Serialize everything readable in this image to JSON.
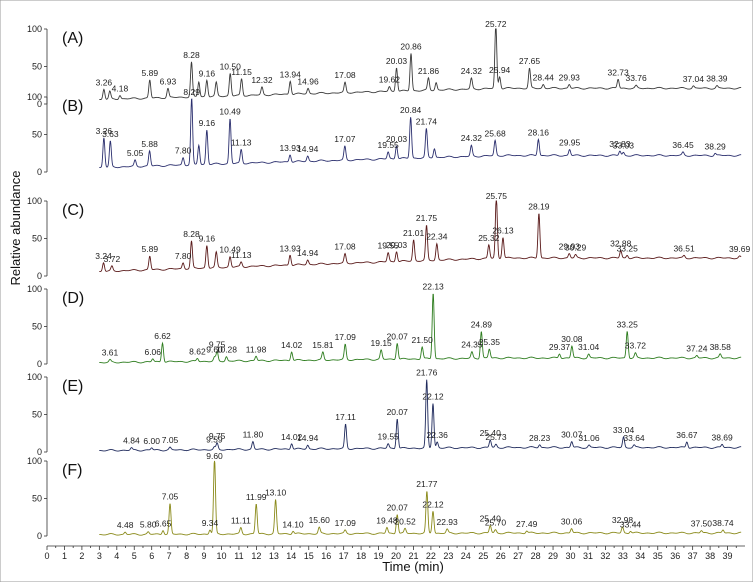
{
  "chart_data": {
    "type": "line",
    "xlabel": "Time (min)",
    "ylabel": "Relative abundance",
    "xlim": [
      0,
      40
    ],
    "x_ticks": [
      0,
      1,
      2,
      3,
      4,
      5,
      6,
      7,
      8,
      9,
      10,
      11,
      12,
      13,
      14,
      15,
      16,
      17,
      18,
      19,
      20,
      21,
      22,
      23,
      24,
      25,
      26,
      27,
      28,
      29,
      30,
      31,
      32,
      33,
      34,
      35,
      36,
      37,
      38,
      39
    ],
    "x_tick_labels": [
      "0",
      "1",
      "2",
      "3",
      "4",
      "5",
      "6",
      "7",
      "8",
      "9",
      "10",
      "11",
      "12",
      "13",
      "14",
      "15",
      "16",
      "17",
      "18",
      "19",
      "20",
      "21",
      "22",
      "23",
      "24",
      "25",
      "26",
      "27",
      "28",
      "29",
      "30",
      "31",
      "32",
      "33",
      "34",
      "35",
      "36",
      "37",
      "38",
      "39"
    ],
    "ylim": [
      0,
      100
    ],
    "y_ticks": [
      0,
      50,
      100
    ],
    "y_tick_labels": [
      "0",
      "50",
      "100"
    ],
    "panels": [
      {
        "label": "(A)",
        "color": "#3a3a3a",
        "baseline_start": 6,
        "baseline_end": 21,
        "peaks": [
          {
            "t": 3.26,
            "h": 14,
            "label": "3.26"
          },
          {
            "t": 3.6,
            "h": 10,
            "label": null
          },
          {
            "t": 4.18,
            "h": 5,
            "label": "4.18"
          },
          {
            "t": 5.89,
            "h": 24,
            "label": "5.89"
          },
          {
            "t": 6.93,
            "h": 12,
            "label": "6.93"
          },
          {
            "t": 8.28,
            "h": 46,
            "label": "8.28"
          },
          {
            "t": 8.7,
            "h": 20,
            "label": null
          },
          {
            "t": 9.16,
            "h": 22,
            "label": "9.16"
          },
          {
            "t": 9.7,
            "h": 18,
            "label": null
          },
          {
            "t": 10.5,
            "h": 30,
            "label": "10.50"
          },
          {
            "t": 11.15,
            "h": 22,
            "label": "11.15"
          },
          {
            "t": 12.32,
            "h": 10,
            "label": "12.32"
          },
          {
            "t": 13.94,
            "h": 18,
            "label": "13.94"
          },
          {
            "t": 14.96,
            "h": 7,
            "label": "14.96"
          },
          {
            "t": 17.08,
            "h": 13,
            "label": "17.08"
          },
          {
            "t": 19.62,
            "h": 6,
            "label": "19.62"
          },
          {
            "t": 20.03,
            "h": 32,
            "label": "20.03"
          },
          {
            "t": 20.86,
            "h": 50,
            "label": "20.86"
          },
          {
            "t": 21.86,
            "h": 16,
            "label": "21.86"
          },
          {
            "t": 22.3,
            "h": 10,
            "label": null
          },
          {
            "t": 24.32,
            "h": 14,
            "label": "24.32"
          },
          {
            "t": 25.72,
            "h": 85,
            "label": "25.72"
          },
          {
            "t": 25.94,
            "h": 16,
            "label": "25.94"
          },
          {
            "t": 27.65,
            "h": 26,
            "label": "27.65"
          },
          {
            "t": 28.44,
            "h": 5,
            "label": "28.44"
          },
          {
            "t": 29.93,
            "h": 5,
            "label": "29.93"
          },
          {
            "t": 32.73,
            "h": 12,
            "label": "32.73"
          },
          {
            "t": 33.76,
            "h": 3,
            "label": "33.76"
          },
          {
            "t": 37.04,
            "h": 3,
            "label": "37.04"
          },
          {
            "t": 38.39,
            "h": 3,
            "label": "38.39"
          }
        ]
      },
      {
        "label": "(B)",
        "color": "#2b2f6e",
        "baseline_start": 6,
        "baseline_end": 22,
        "peaks": [
          {
            "t": 3.26,
            "h": 40,
            "label": "3.26"
          },
          {
            "t": 3.63,
            "h": 34,
            "label": "3.63"
          },
          {
            "t": 5.05,
            "h": 8,
            "label": "5.05"
          },
          {
            "t": 5.88,
            "h": 20,
            "label": "5.88"
          },
          {
            "t": 7.8,
            "h": 10,
            "label": "7.80"
          },
          {
            "t": 8.29,
            "h": 88,
            "label": "8.29"
          },
          {
            "t": 8.7,
            "h": 26,
            "label": null
          },
          {
            "t": 9.16,
            "h": 46,
            "label": "9.16"
          },
          {
            "t": 10.49,
            "h": 60,
            "label": "10.49"
          },
          {
            "t": 11.13,
            "h": 18,
            "label": "11.13"
          },
          {
            "t": 13.93,
            "h": 10,
            "label": "13.93"
          },
          {
            "t": 14.94,
            "h": 7,
            "label": "14.94"
          },
          {
            "t": 17.07,
            "h": 18,
            "label": "17.07"
          },
          {
            "t": 19.55,
            "h": 9,
            "label": "19.55"
          },
          {
            "t": 20.03,
            "h": 18,
            "label": "20.03"
          },
          {
            "t": 20.84,
            "h": 55,
            "label": "20.84"
          },
          {
            "t": 21.74,
            "h": 38,
            "label": "21.74"
          },
          {
            "t": 22.2,
            "h": 12,
            "label": null
          },
          {
            "t": 24.32,
            "h": 14,
            "label": "24.32"
          },
          {
            "t": 25.68,
            "h": 20,
            "label": "25.68"
          },
          {
            "t": 28.16,
            "h": 22,
            "label": "28.16"
          },
          {
            "t": 29.95,
            "h": 8,
            "label": "29.95"
          },
          {
            "t": 32.83,
            "h": 6,
            "label": "32.83"
          },
          {
            "t": 33.03,
            "h": 4,
            "label": "33.03"
          },
          {
            "t": 36.45,
            "h": 4,
            "label": "36.45"
          },
          {
            "t": 38.29,
            "h": 3,
            "label": "38.29"
          }
        ]
      },
      {
        "label": "(C)",
        "color": "#5a1a1a",
        "baseline_start": 6,
        "baseline_end": 24,
        "peaks": [
          {
            "t": 3.24,
            "h": 12,
            "label": "3.24"
          },
          {
            "t": 3.72,
            "h": 6,
            "label": "3.72"
          },
          {
            "t": 5.89,
            "h": 18,
            "label": "5.89"
          },
          {
            "t": 7.8,
            "h": 8,
            "label": "7.80"
          },
          {
            "t": 8.28,
            "h": 36,
            "label": "8.28"
          },
          {
            "t": 9.16,
            "h": 30,
            "label": "9.16"
          },
          {
            "t": 9.7,
            "h": 20,
            "label": null
          },
          {
            "t": 10.49,
            "h": 14,
            "label": "10.49"
          },
          {
            "t": 11.13,
            "h": 6,
            "label": "11.13"
          },
          {
            "t": 13.93,
            "h": 14,
            "label": "13.93"
          },
          {
            "t": 14.94,
            "h": 6,
            "label": "14.94"
          },
          {
            "t": 17.08,
            "h": 12,
            "label": "17.08"
          },
          {
            "t": 19.55,
            "h": 12,
            "label": "19.55"
          },
          {
            "t": 20.03,
            "h": 14,
            "label": "20.03"
          },
          {
            "t": 21.01,
            "h": 28,
            "label": "21.01"
          },
          {
            "t": 21.75,
            "h": 46,
            "label": "21.75"
          },
          {
            "t": 22.34,
            "h": 22,
            "label": "22.34"
          },
          {
            "t": 25.32,
            "h": 18,
            "label": "25.32"
          },
          {
            "t": 25.75,
            "h": 82,
            "label": "25.75"
          },
          {
            "t": 26.13,
            "h": 28,
            "label": "26.13"
          },
          {
            "t": 28.19,
            "h": 60,
            "label": "28.19"
          },
          {
            "t": 29.93,
            "h": 6,
            "label": "29.93"
          },
          {
            "t": 30.29,
            "h": 4,
            "label": "30.29"
          },
          {
            "t": 32.88,
            "h": 10,
            "label": "32.88"
          },
          {
            "t": 33.25,
            "h": 4,
            "label": "33.25"
          },
          {
            "t": 36.51,
            "h": 3,
            "label": "36.51"
          },
          {
            "t": 39.69,
            "h": 2,
            "label": "39.69"
          }
        ]
      },
      {
        "label": "(D)",
        "color": "#2e7d1f",
        "baseline_start": 2,
        "baseline_end": 8,
        "peaks": [
          {
            "t": 3.61,
            "h": 3,
            "label": "3.61"
          },
          {
            "t": 6.06,
            "h": 4,
            "label": "6.06"
          },
          {
            "t": 6.62,
            "h": 26,
            "label": "6.62"
          },
          {
            "t": 8.62,
            "h": 4,
            "label": "8.62"
          },
          {
            "t": 9.6,
            "h": 5,
            "label": "9.60"
          },
          {
            "t": 9.75,
            "h": 12,
            "label": "9.75"
          },
          {
            "t": 10.28,
            "h": 6,
            "label": "10.28"
          },
          {
            "t": 11.98,
            "h": 6,
            "label": "11.98"
          },
          {
            "t": 14.02,
            "h": 12,
            "label": "14.02"
          },
          {
            "t": 15.81,
            "h": 10,
            "label": "15.81"
          },
          {
            "t": 17.09,
            "h": 20,
            "label": "17.09"
          },
          {
            "t": 19.15,
            "h": 12,
            "label": "19.15"
          },
          {
            "t": 20.07,
            "h": 22,
            "label": "20.07"
          },
          {
            "t": 21.5,
            "h": 16,
            "label": "21.50"
          },
          {
            "t": 22.13,
            "h": 88,
            "label": "22.13"
          },
          {
            "t": 24.35,
            "h": 8,
            "label": "24.35"
          },
          {
            "t": 24.89,
            "h": 36,
            "label": "24.89"
          },
          {
            "t": 25.35,
            "h": 12,
            "label": "25.35"
          },
          {
            "t": 29.37,
            "h": 6,
            "label": "29.37"
          },
          {
            "t": 30.08,
            "h": 16,
            "label": "30.08"
          },
          {
            "t": 31.04,
            "h": 5,
            "label": "31.04"
          },
          {
            "t": 33.25,
            "h": 36,
            "label": "33.25"
          },
          {
            "t": 33.72,
            "h": 6,
            "label": "33.72"
          },
          {
            "t": 37.24,
            "h": 3,
            "label": "37.24"
          },
          {
            "t": 38.58,
            "h": 5,
            "label": "38.58"
          }
        ]
      },
      {
        "label": "(E)",
        "color": "#1f2a5c",
        "baseline_start": 2,
        "baseline_end": 6,
        "peaks": [
          {
            "t": 4.84,
            "h": 3,
            "label": "4.84"
          },
          {
            "t": 6.0,
            "h": 3,
            "label": "6.00"
          },
          {
            "t": 7.05,
            "h": 3,
            "label": "7.05"
          },
          {
            "t": 9.59,
            "h": 3,
            "label": "9.59"
          },
          {
            "t": 9.75,
            "h": 8,
            "label": "9.75"
          },
          {
            "t": 11.8,
            "h": 10,
            "label": "11.80"
          },
          {
            "t": 14.02,
            "h": 8,
            "label": "14.02"
          },
          {
            "t": 14.94,
            "h": 5,
            "label": "14.94"
          },
          {
            "t": 17.11,
            "h": 32,
            "label": "17.11"
          },
          {
            "t": 19.55,
            "h": 6,
            "label": "19.55"
          },
          {
            "t": 20.07,
            "h": 40,
            "label": "20.07"
          },
          {
            "t": 21.76,
            "h": 90,
            "label": "21.76"
          },
          {
            "t": 22.12,
            "h": 60,
            "label": "22.12"
          },
          {
            "t": 22.36,
            "h": 8,
            "label": "22.36"
          },
          {
            "t": 25.4,
            "h": 10,
            "label": "25.40"
          },
          {
            "t": 25.73,
            "h": 4,
            "label": "25.73"
          },
          {
            "t": 28.23,
            "h": 4,
            "label": "28.23"
          },
          {
            "t": 30.07,
            "h": 8,
            "label": "30.07"
          },
          {
            "t": 31.06,
            "h": 3,
            "label": "31.06"
          },
          {
            "t": 33.04,
            "h": 14,
            "label": "33.04"
          },
          {
            "t": 33.64,
            "h": 3,
            "label": "33.64"
          },
          {
            "t": 36.67,
            "h": 8,
            "label": "36.67"
          },
          {
            "t": 38.69,
            "h": 4,
            "label": "38.69"
          }
        ]
      },
      {
        "label": "(F)",
        "color": "#8a8a1a",
        "baseline_start": 2,
        "baseline_end": 4,
        "peaks": [
          {
            "t": 4.48,
            "h": 3,
            "label": "4.48"
          },
          {
            "t": 5.8,
            "h": 3,
            "label": "5.80"
          },
          {
            "t": 6.65,
            "h": 6,
            "label": "6.65"
          },
          {
            "t": 7.05,
            "h": 40,
            "label": "7.05"
          },
          {
            "t": 9.34,
            "h": 6,
            "label": "9.34"
          },
          {
            "t": 9.6,
            "h": 100,
            "label": "9.60"
          },
          {
            "t": 11.11,
            "h": 8,
            "label": "11.11"
          },
          {
            "t": 11.99,
            "h": 40,
            "label": "11.99"
          },
          {
            "t": 13.1,
            "h": 45,
            "label": "13.10"
          },
          {
            "t": 14.1,
            "h": 4,
            "label": "14.10"
          },
          {
            "t": 15.6,
            "h": 8,
            "label": "15.60"
          },
          {
            "t": 17.09,
            "h": 4,
            "label": "17.09"
          },
          {
            "t": 19.48,
            "h": 8,
            "label": "19.48"
          },
          {
            "t": 20.07,
            "h": 26,
            "label": "20.07"
          },
          {
            "t": 20.52,
            "h": 6,
            "label": "20.52"
          },
          {
            "t": 21.77,
            "h": 55,
            "label": "21.77"
          },
          {
            "t": 22.12,
            "h": 30,
            "label": "22.12"
          },
          {
            "t": 22.93,
            "h": 5,
            "label": "22.93"
          },
          {
            "t": 25.4,
            "h": 10,
            "label": "25.40"
          },
          {
            "t": 25.7,
            "h": 4,
            "label": "25.70"
          },
          {
            "t": 27.49,
            "h": 3,
            "label": "27.49"
          },
          {
            "t": 30.06,
            "h": 6,
            "label": "30.06"
          },
          {
            "t": 32.98,
            "h": 8,
            "label": "32.98"
          },
          {
            "t": 33.44,
            "h": 3,
            "label": "33.44"
          },
          {
            "t": 37.5,
            "h": 3,
            "label": "37.50"
          },
          {
            "t": 38.74,
            "h": 4,
            "label": "38.74"
          }
        ]
      }
    ]
  }
}
